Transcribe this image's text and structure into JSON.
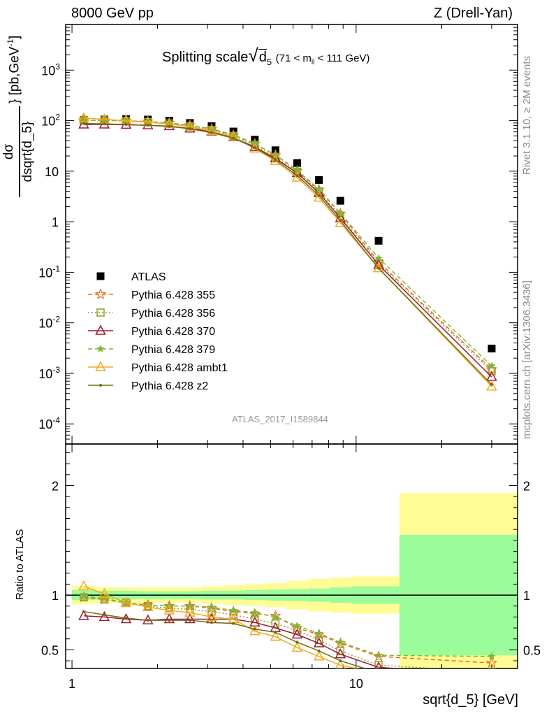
{
  "header": {
    "energy": "8000 GeV pp",
    "process": "Z (Drell-Yan)"
  },
  "side_labels": {
    "rivet": "Rivet 3.1.10, ≥ 2M events",
    "mcplots": "mcplots.cern.ch [arXiv:1306.3436]"
  },
  "analysis_id": "ATLAS_2017_I1589844",
  "title": {
    "main": "Splitting scale",
    "d": "d",
    "d_sub": "5",
    "cut_pre": "(71 < m",
    "cut_sub": "ll",
    "cut_post": " < 111 GeV)"
  },
  "ylabel": {
    "num": "dσ",
    "den": "dsqrt{d_5}",
    "units": "} [pb,GeV",
    "units_sup": "-1",
    "units_end": "]"
  },
  "xlabel": "sqrt{d_5} [GeV]",
  "ratio_ylabel": "Ratio to ATLAS",
  "colors": {
    "ATLAS": "#000000",
    "p355": "#ee6d1a",
    "p356": "#8aa323",
    "p370": "#9c1a36",
    "p379": "#7fb63a",
    "ambt1": "#f5a81c",
    "z2": "#6e6e14",
    "band_inner": "#9bfc9b",
    "band_outer": "#fffc96"
  },
  "chart_data": [
    {
      "type": "scatter",
      "panel": "main",
      "title": "Splitting scale √d5 (71 < m_ll < 111 GeV)",
      "xlabel": "sqrt{d_5} [GeV]",
      "ylabel": "dσ/dsqrt{d_5} [pb,GeV^-1]",
      "xscale": "log",
      "yscale": "log",
      "xlim": [
        0.95,
        37
      ],
      "ylim": [
        4e-05,
        8000
      ],
      "x_ticks": [
        "1",
        "10"
      ],
      "y_ticks": [
        "10^-4",
        "10^-3",
        "10^-2",
        "10^-1",
        "1",
        "10",
        "10^2",
        "10^3"
      ],
      "legend_position": "lower-left",
      "x": [
        1.1,
        1.3,
        1.55,
        1.85,
        2.2,
        2.6,
        3.1,
        3.7,
        4.4,
        5.2,
        6.2,
        7.4,
        8.8,
        12,
        30
      ],
      "series": [
        {
          "name": "ATLAS",
          "color_key": "ATLAS",
          "marker": "square",
          "line": "none",
          "values": [
            103,
            105,
            107,
            105,
            100,
            90,
            78,
            61,
            42,
            26,
            14.5,
            6.7,
            2.6,
            0.42,
            0.0031
          ]
        },
        {
          "name": "Pythia 6.428 355",
          "color_key": "p355",
          "marker": "star-open",
          "line": "dashed",
          "values": [
            101,
            101,
            100,
            96,
            90,
            81,
            68,
            52,
            35,
            21,
            10.2,
            4.3,
            1.45,
            0.16,
            0.0012
          ]
        },
        {
          "name": "Pythia 6.428 356",
          "color_key": "p356",
          "marker": "square-open",
          "line": "dotted",
          "values": [
            101,
            101,
            99,
            94,
            88,
            78,
            66,
            50,
            33,
            19,
            9.8,
            4.0,
            1.28,
            0.15,
            0.0011
          ]
        },
        {
          "name": "Pythia 6.428 370",
          "color_key": "p370",
          "marker": "triangle-open",
          "line": "solid",
          "values": [
            84,
            84,
            83,
            81,
            78,
            70,
            61,
            47,
            30,
            18,
            9.2,
            3.7,
            1.18,
            0.14,
            0.00085
          ]
        },
        {
          "name": "Pythia 6.428 379",
          "color_key": "p379",
          "marker": "star",
          "line": "dashed",
          "values": [
            101,
            101,
            99,
            95,
            90,
            81,
            69,
            53,
            35,
            21,
            10.5,
            4.4,
            1.48,
            0.19,
            0.0014
          ]
        },
        {
          "name": "Pythia 6.428 ambt1",
          "color_key": "ambt1",
          "marker": "triangle-open",
          "line": "solid",
          "values": [
            112,
            106,
            100,
            93,
            86,
            76,
            62,
            48,
            28,
            16,
            7.5,
            3.0,
            0.95,
            0.12,
            0.00055
          ]
        },
        {
          "name": "Pythia 6.428 z2",
          "color_key": "z2",
          "marker": "dot",
          "line": "solid",
          "values": [
            88,
            86,
            84,
            81,
            77,
            69,
            58,
            45,
            29,
            17,
            8.2,
            3.3,
            1.05,
            0.12,
            0.0006
          ]
        }
      ]
    },
    {
      "type": "line",
      "panel": "ratio",
      "ylabel": "Ratio to ATLAS",
      "xscale": "log",
      "xlim": [
        0.95,
        37
      ],
      "ylim": [
        0.33,
        2.38
      ],
      "y_ticks": [
        "0.5",
        "1",
        "2"
      ],
      "bands": {
        "edges": [
          1.0,
          1.2,
          1.42,
          1.7,
          2.02,
          2.4,
          2.85,
          3.4,
          4.05,
          4.8,
          5.7,
          6.8,
          8.1,
          9.6,
          14.2,
          37
        ],
        "inner": [
          0.045,
          0.04,
          0.04,
          0.035,
          0.035,
          0.035,
          0.04,
          0.04,
          0.045,
          0.05,
          0.055,
          0.06,
          0.07,
          0.08,
          0.55
        ],
        "outer": [
          0.085,
          0.075,
          0.07,
          0.07,
          0.07,
          0.07,
          0.08,
          0.09,
          0.1,
          0.11,
          0.13,
          0.15,
          0.16,
          0.17,
          0.93
        ]
      },
      "x": [
        1.1,
        1.3,
        1.55,
        1.85,
        2.2,
        2.6,
        3.1,
        3.7,
        4.4,
        5.2,
        6.2,
        7.4,
        8.8,
        12,
        30
      ],
      "series": [
        {
          "name": "Pythia 6.428 355",
          "color_key": "p355",
          "values": [
            0.98,
            0.96,
            0.93,
            0.91,
            0.9,
            0.9,
            0.88,
            0.85,
            0.83,
            0.81,
            0.7,
            0.64,
            0.56,
            0.44,
            0.38
          ]
        },
        {
          "name": "Pythia 6.428 356",
          "color_key": "p356",
          "values": [
            0.98,
            0.96,
            0.93,
            0.9,
            0.88,
            0.87,
            0.85,
            0.82,
            0.78,
            0.74,
            0.68,
            0.59,
            0.49,
            0.36,
            0.3
          ]
        },
        {
          "name": "Pythia 6.428 370",
          "color_key": "p370",
          "values": [
            0.81,
            0.8,
            0.78,
            0.77,
            0.78,
            0.78,
            0.78,
            0.78,
            0.75,
            0.7,
            0.64,
            0.56,
            0.46,
            0.34,
            0.27
          ]
        },
        {
          "name": "Pythia 6.428 379",
          "color_key": "p379",
          "values": [
            0.99,
            0.97,
            0.93,
            0.91,
            0.9,
            0.9,
            0.89,
            0.86,
            0.84,
            0.8,
            0.72,
            0.65,
            0.57,
            0.45,
            0.44
          ]
        },
        {
          "name": "Pythia 6.428 ambt1",
          "color_key": "ambt1",
          "values": [
            1.08,
            1.01,
            0.93,
            0.89,
            0.86,
            0.84,
            0.8,
            0.78,
            0.67,
            0.62,
            0.52,
            0.44,
            0.36,
            0.29,
            0.18
          ]
        },
        {
          "name": "Pythia 6.428 z2",
          "color_key": "z2",
          "values": [
            0.85,
            0.82,
            0.79,
            0.77,
            0.77,
            0.77,
            0.75,
            0.74,
            0.69,
            0.66,
            0.57,
            0.49,
            0.4,
            0.29,
            0.19
          ]
        }
      ]
    }
  ]
}
